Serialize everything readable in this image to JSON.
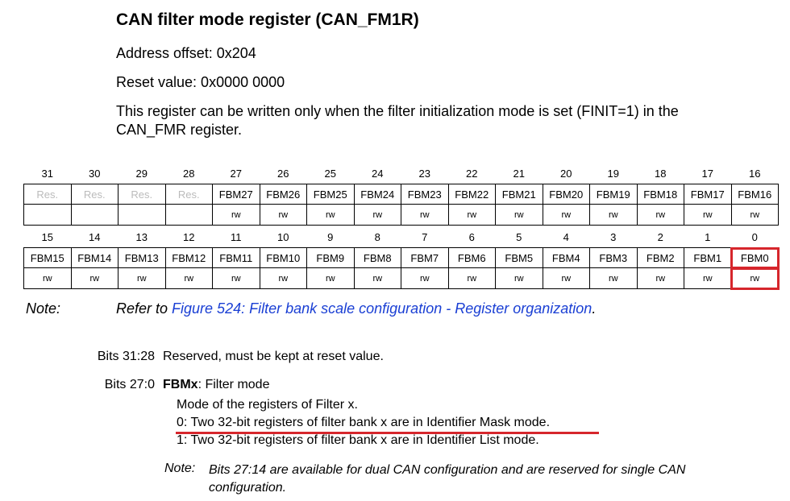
{
  "title": "CAN filter mode register (CAN_FM1R)",
  "address_offset": "Address offset: 0x204",
  "reset_value": "Reset value: 0x0000 0000",
  "description_line1": "This register can be written only when the filter initialization mode is set (FINIT=1) in the",
  "description_line2": "CAN_FMR register.",
  "upper_register": {
    "bits": [
      "31",
      "30",
      "29",
      "28",
      "27",
      "26",
      "25",
      "24",
      "23",
      "22",
      "21",
      "20",
      "19",
      "18",
      "17",
      "16"
    ],
    "fields": [
      "Res.",
      "Res.",
      "Res.",
      "Res.",
      "FBM27",
      "FBM26",
      "FBM25",
      "FBM24",
      "FBM23",
      "FBM22",
      "FBM21",
      "FBM20",
      "FBM19",
      "FBM18",
      "FBM17",
      "FBM16"
    ],
    "access": [
      "",
      "",
      "",
      "",
      "rw",
      "rw",
      "rw",
      "rw",
      "rw",
      "rw",
      "rw",
      "rw",
      "rw",
      "rw",
      "rw",
      "rw"
    ]
  },
  "lower_register": {
    "bits": [
      "15",
      "14",
      "13",
      "12",
      "11",
      "10",
      "9",
      "8",
      "7",
      "6",
      "5",
      "4",
      "3",
      "2",
      "1",
      "0"
    ],
    "fields": [
      "FBM15",
      "FBM14",
      "FBM13",
      "FBM12",
      "FBM11",
      "FBM10",
      "FBM9",
      "FBM8",
      "FBM7",
      "FBM6",
      "FBM5",
      "FBM4",
      "FBM3",
      "FBM2",
      "FBM1",
      "FBM0"
    ],
    "access": [
      "rw",
      "rw",
      "rw",
      "rw",
      "rw",
      "rw",
      "rw",
      "rw",
      "rw",
      "rw",
      "rw",
      "rw",
      "rw",
      "rw",
      "rw",
      "rw"
    ]
  },
  "note": {
    "label": "Note:",
    "prefix": "Refer to ",
    "link": "Figure 524: Filter bank scale configuration - Register organization",
    "suffix": "."
  },
  "bits_31_28": {
    "label": "Bits 31:28",
    "text": "Reserved, must be kept at reset value."
  },
  "bits_27_0": {
    "label": "Bits 27:0",
    "field": "FBMx",
    "field_desc": ": Filter mode",
    "line1": "Mode of the registers of Filter x.",
    "line2": "0: Two 32-bit registers of filter bank x are in Identifier Mask mode.",
    "line3": "1: Two 32-bit registers of filter bank x are in Identifier List mode."
  },
  "note2": {
    "label": "Note:",
    "text": "Bits 27:14 are available for dual CAN configuration and are reserved for single CAN configuration."
  },
  "colors": {
    "highlight": "#d6262c",
    "link": "#1a3fd4"
  }
}
